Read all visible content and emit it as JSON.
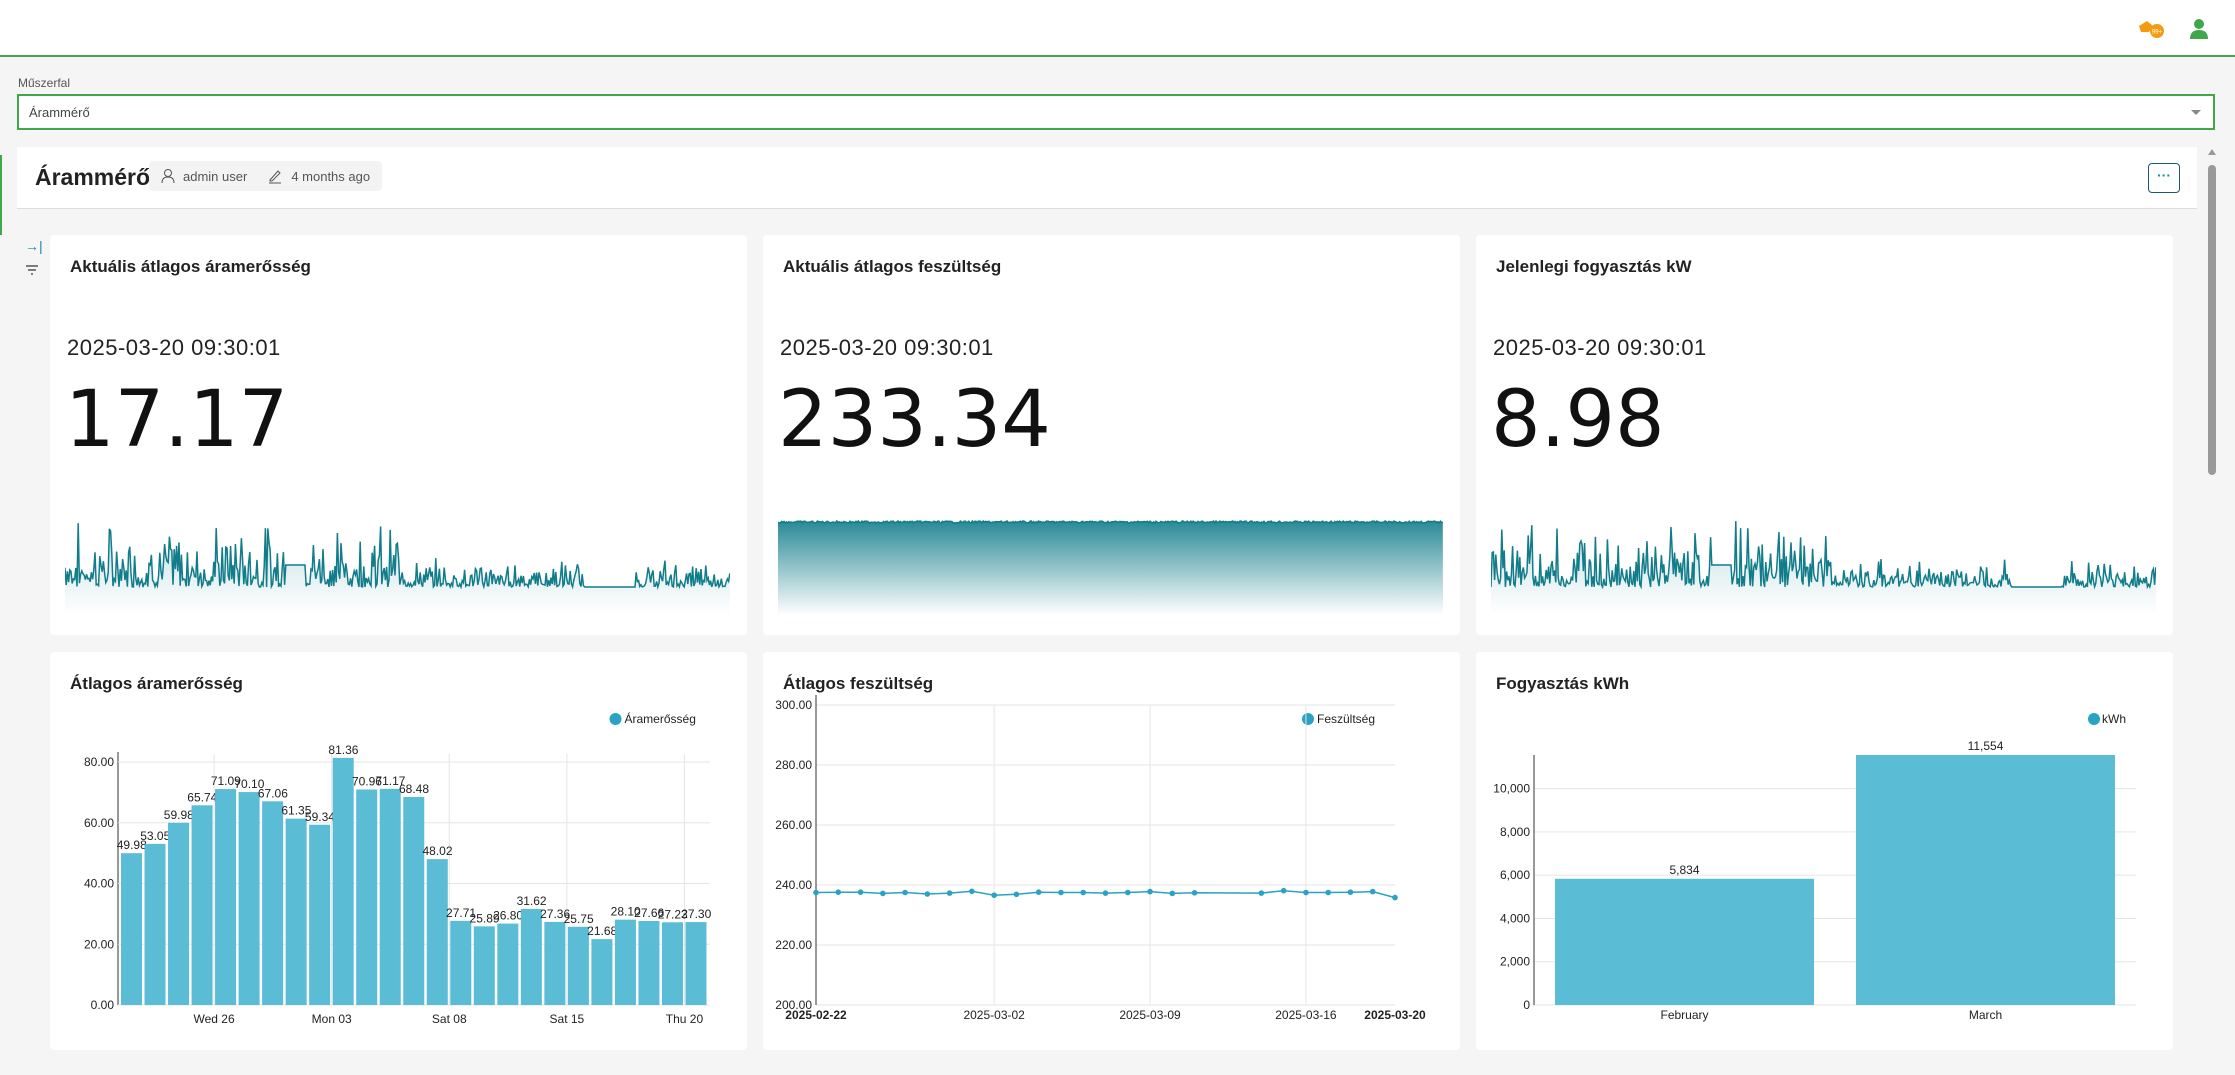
{
  "topbar": {
    "icons": [
      "notification-truck-icon",
      "user-icon"
    ],
    "colors": {
      "notification": "#f39c12",
      "user": "#3fa84a"
    }
  },
  "selector": {
    "label": "Műszerfal",
    "value": "Árammérő"
  },
  "dashboard": {
    "title": "Árammérő",
    "author": "admin user",
    "modified": "4 months ago",
    "more_label": "···"
  },
  "accent": "#117c8a",
  "stats": [
    {
      "title": "Aktuális átlagos áramerősség",
      "timestamp": "2025-03-20 09:30:01",
      "value": "17.17"
    },
    {
      "title": "Aktuális átlagos feszültség",
      "timestamp": "2025-03-20 09:30:01",
      "value": "233.34"
    },
    {
      "title": "Jelenlegi fogyasztás kW",
      "timestamp": "2025-03-20 09:30:01",
      "value": "8.98"
    }
  ],
  "chart_data": [
    {
      "type": "bar",
      "title": "Átlagos áramerősség",
      "legend": "Áramerősség",
      "legend_position": "top-right",
      "color": "#5bbcd6",
      "values": [
        49.98,
        53.05,
        59.98,
        65.74,
        71.09,
        70.1,
        67.06,
        61.35,
        59.34,
        81.36,
        70.96,
        71.17,
        68.48,
        48.02,
        27.71,
        25.89,
        26.8,
        31.62,
        27.36,
        25.75,
        21.68,
        28.1,
        27.66,
        27.23,
        27.3
      ],
      "labels": [
        "49.98",
        "53.05",
        "59.98",
        "65.74",
        "71.09",
        "70.10",
        "67.06",
        "61.35",
        "59.34",
        "81.36",
        "70.96",
        "71.17",
        "68.48",
        "48.02",
        "27.71",
        "25.89",
        "26.80",
        "31.62",
        "27.36",
        "25.75",
        "21.68",
        "28.10",
        "27.66",
        "27.23",
        "27.30"
      ],
      "x_ticks": [
        {
          "label": "Wed 26",
          "at": 3.5
        },
        {
          "label": "Mon 03",
          "at": 8.5
        },
        {
          "label": "Sat 08",
          "at": 13.5
        },
        {
          "label": "Sat 15",
          "at": 18.5
        },
        {
          "label": "Thu 20",
          "at": 23.5
        }
      ],
      "y_ticks": [
        "0.00",
        "20.00",
        "40.00",
        "60.00",
        "80.00"
      ],
      "ylim": [
        0,
        80
      ],
      "grid": true
    },
    {
      "type": "line",
      "title": "Átlagos feszültség",
      "legend": "Feszültség",
      "legend_position": "top-right",
      "color": "#2aa3c2",
      "x": [
        "2025-02-22",
        "2025-02-23",
        "2025-02-24",
        "2025-02-25",
        "2025-02-26",
        "2025-02-27",
        "2025-02-28",
        "2025-03-01",
        "2025-03-02",
        "2025-03-03",
        "2025-03-04",
        "2025-03-05",
        "2025-03-06",
        "2025-03-07",
        "2025-03-08",
        "2025-03-09",
        "2025-03-10",
        "2025-03-11",
        "2025-03-14",
        "2025-03-15",
        "2025-03-16",
        "2025-03-17",
        "2025-03-18",
        "2025-03-19",
        "2025-03-20"
      ],
      "values": [
        237.5,
        237.6,
        237.6,
        237.2,
        237.5,
        237.0,
        237.3,
        237.9,
        236.6,
        236.9,
        237.6,
        237.5,
        237.5,
        237.3,
        237.5,
        237.8,
        237.2,
        237.4,
        237.3,
        238.1,
        237.5,
        237.5,
        237.6,
        237.8,
        235.8
      ],
      "x_ticks": [
        "2025-02-22",
        "2025-03-02",
        "2025-03-09",
        "2025-03-16",
        "2025-03-20"
      ],
      "y_ticks": [
        "200.00",
        "220.00",
        "240.00",
        "260.00",
        "280.00",
        "300.00"
      ],
      "ylim": [
        200,
        300
      ],
      "grid": true
    },
    {
      "type": "bar",
      "title": "Fogyasztás kWh",
      "legend": "kWh",
      "legend_position": "top-right",
      "color": "#5bbcd6",
      "categories": [
        "February",
        "March"
      ],
      "values": [
        5834,
        11554
      ],
      "labels": [
        "5,834",
        "11,554"
      ],
      "y_ticks": [
        "0",
        "2,000",
        "4,000",
        "6,000",
        "8,000",
        "10,000"
      ],
      "ylim": [
        0,
        11554
      ],
      "grid": true
    }
  ]
}
